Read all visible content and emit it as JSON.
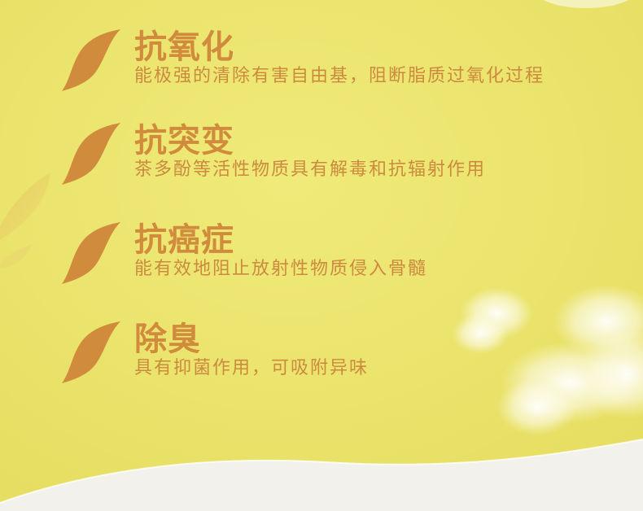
{
  "colors": {
    "background_yellow": "#ece570",
    "accent_orange": "#d18b3c",
    "wave_white": "#f5f3ef"
  },
  "features": [
    {
      "icon": "leaf-icon",
      "title": "抗氧化",
      "desc": "能极强的清除有害自由基，阻断脂质过氧化过程"
    },
    {
      "icon": "leaf-icon",
      "title": "抗突变",
      "desc": "茶多酚等活性物质具有解毒和抗辐射作用"
    },
    {
      "icon": "leaf-icon",
      "title": "抗癌症",
      "desc": "能有效地阻止放射性物质侵入骨髓"
    },
    {
      "icon": "leaf-icon",
      "title": "除臭",
      "desc": "具有抑菌作用，可吸附异味"
    }
  ]
}
